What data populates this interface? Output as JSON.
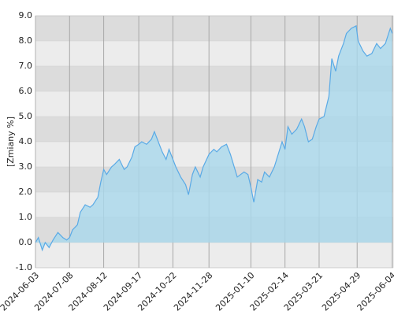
{
  "chart_data": {
    "type": "area",
    "y_label": "[Zmiany %]",
    "x": [
      "2024-06-03",
      "2024-06-06",
      "2024-06-10",
      "2024-06-13",
      "2024-06-17",
      "2024-06-21",
      "2024-06-26",
      "2024-07-01",
      "2024-07-05",
      "2024-07-08",
      "2024-07-11",
      "2024-07-16",
      "2024-07-19",
      "2024-07-24",
      "2024-07-29",
      "2024-08-01",
      "2024-08-06",
      "2024-08-09",
      "2024-08-12",
      "2024-08-15",
      "2024-08-20",
      "2024-08-23",
      "2024-08-28",
      "2024-09-02",
      "2024-09-05",
      "2024-09-10",
      "2024-09-13",
      "2024-09-17",
      "2024-09-20",
      "2024-09-25",
      "2024-09-30",
      "2024-10-03",
      "2024-10-08",
      "2024-10-11",
      "2024-10-15",
      "2024-10-18",
      "2024-10-22",
      "2024-10-25",
      "2024-10-30",
      "2024-11-04",
      "2024-11-07",
      "2024-11-11",
      "2024-11-14",
      "2024-11-19",
      "2024-11-22",
      "2024-11-28",
      "2024-12-03",
      "2024-12-06",
      "2024-12-11",
      "2024-12-16",
      "2024-12-20",
      "2024-12-27",
      "2025-01-03",
      "2025-01-07",
      "2025-01-10",
      "2025-01-13",
      "2025-01-17",
      "2025-01-21",
      "2025-01-24",
      "2025-01-29",
      "2025-02-03",
      "2025-02-07",
      "2025-02-11",
      "2025-02-14",
      "2025-02-17",
      "2025-02-21",
      "2025-02-26",
      "2025-03-03",
      "2025-03-06",
      "2025-03-10",
      "2025-03-14",
      "2025-03-18",
      "2025-03-21",
      "2025-03-26",
      "2025-03-31",
      "2025-04-03",
      "2025-04-07",
      "2025-04-10",
      "2025-04-15",
      "2025-04-18",
      "2025-04-23",
      "2025-04-28",
      "2025-04-30",
      "2025-05-05",
      "2025-05-09",
      "2025-05-14",
      "2025-05-19",
      "2025-05-23",
      "2025-05-28",
      "2025-06-02",
      "2025-06-04"
    ],
    "values": [
      0.0,
      0.2,
      -0.3,
      0.0,
      -0.2,
      0.1,
      0.4,
      0.2,
      0.1,
      0.2,
      0.5,
      0.7,
      1.2,
      1.5,
      1.4,
      1.5,
      1.8,
      2.4,
      2.9,
      2.7,
      3.0,
      3.1,
      3.3,
      2.9,
      3.0,
      3.4,
      3.8,
      3.9,
      4.0,
      3.9,
      4.1,
      4.4,
      3.9,
      3.6,
      3.3,
      3.7,
      3.3,
      3.0,
      2.6,
      2.3,
      1.9,
      2.7,
      3.0,
      2.6,
      3.0,
      3.5,
      3.7,
      3.6,
      3.8,
      3.9,
      3.5,
      2.6,
      2.8,
      2.7,
      2.2,
      1.6,
      2.5,
      2.4,
      2.8,
      2.6,
      3.0,
      3.5,
      4.0,
      3.7,
      4.6,
      4.3,
      4.5,
      4.9,
      4.6,
      4.0,
      4.1,
      4.6,
      4.9,
      5.0,
      5.8,
      7.3,
      6.8,
      7.4,
      7.9,
      8.3,
      8.5,
      8.6,
      8.0,
      7.6,
      7.4,
      7.5,
      7.9,
      7.7,
      7.9,
      8.5,
      8.3
    ],
    "color": "#5aaae6",
    "fill": "#a9d8ec",
    "xlim": [
      "2024-06-03",
      "2025-06-05"
    ],
    "xticks": [
      "2024-06-03",
      "2024-07-08",
      "2024-08-12",
      "2024-09-17",
      "2024-10-22",
      "2024-11-28",
      "2025-01-10",
      "2025-02-14",
      "2025-03-21",
      "2025-04-29",
      "2025-06-04"
    ],
    "ylim": [
      -1,
      9
    ],
    "yticks": [
      {
        "value": -1,
        "label": "-1.0"
      },
      {
        "value": 0,
        "label": "0.0"
      },
      {
        "value": 1,
        "label": "1.0"
      },
      {
        "value": 2,
        "label": "2.0"
      },
      {
        "value": 3,
        "label": "3.0"
      },
      {
        "value": 4,
        "label": "4.0"
      },
      {
        "value": 5,
        "label": "5.0"
      },
      {
        "value": 6,
        "label": "6.0"
      },
      {
        "value": 7,
        "label": "7.0"
      },
      {
        "value": 8,
        "label": "8.0"
      },
      {
        "value": 9,
        "label": "9.0"
      }
    ],
    "grid": true
  }
}
